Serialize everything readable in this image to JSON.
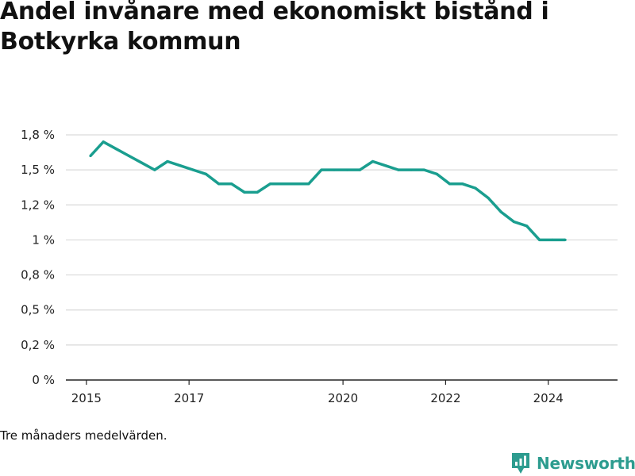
{
  "header": {
    "title": "Andel invånare med ekonomiskt bistånd i Botkyrka kommun"
  },
  "footer": {
    "note": "Tre månaders medelvärden.",
    "brand": "Newsworthy"
  },
  "colors": {
    "line": "#1a9e8f",
    "grid": "#d9d9d9",
    "axis": "#222222",
    "brand": "#2d9c8f"
  },
  "chart_data": {
    "type": "line",
    "title": "Andel invånare med ekonomiskt bistånd i Botkyrka kommun",
    "xlabel": "",
    "ylabel": "",
    "ylim": [
      0,
      1.75
    ],
    "grid": true,
    "y_ticks": [
      {
        "value": 0,
        "label": "0 %"
      },
      {
        "value": 0.25,
        "label": "0,2 %"
      },
      {
        "value": 0.5,
        "label": "0,5 %"
      },
      {
        "value": 0.75,
        "label": "0,8 %"
      },
      {
        "value": 1.0,
        "label": "1 %"
      },
      {
        "value": 1.25,
        "label": "1,2 %"
      },
      {
        "value": 1.5,
        "label": "1,5 %"
      },
      {
        "value": 1.75,
        "label": "1,8 %"
      }
    ],
    "x_ticks": [
      {
        "value": 2015,
        "label": "2015"
      },
      {
        "value": 2017,
        "label": "2017"
      },
      {
        "value": 2020,
        "label": "2020"
      },
      {
        "value": 2022,
        "label": "2022"
      },
      {
        "value": 2024,
        "label": "2024"
      }
    ],
    "xlim": [
      2014.6,
      2025.35
    ],
    "series": [
      {
        "values": [
          {
            "x": 2015.08,
            "y": 1.6
          },
          {
            "x": 2015.33,
            "y": 1.7
          },
          {
            "x": 2015.58,
            "y": 1.65
          },
          {
            "x": 2015.83,
            "y": 1.6
          },
          {
            "x": 2016.08,
            "y": 1.55
          },
          {
            "x": 2016.33,
            "y": 1.5
          },
          {
            "x": 2016.58,
            "y": 1.56
          },
          {
            "x": 2016.83,
            "y": 1.53
          },
          {
            "x": 2017.08,
            "y": 1.5
          },
          {
            "x": 2017.33,
            "y": 1.47
          },
          {
            "x": 2017.58,
            "y": 1.4
          },
          {
            "x": 2017.83,
            "y": 1.4
          },
          {
            "x": 2018.08,
            "y": 1.34
          },
          {
            "x": 2018.33,
            "y": 1.34
          },
          {
            "x": 2018.58,
            "y": 1.4
          },
          {
            "x": 2018.83,
            "y": 1.4
          },
          {
            "x": 2019.08,
            "y": 1.4
          },
          {
            "x": 2019.33,
            "y": 1.4
          },
          {
            "x": 2019.58,
            "y": 1.5
          },
          {
            "x": 2019.83,
            "y": 1.5
          },
          {
            "x": 2020.08,
            "y": 1.5
          },
          {
            "x": 2020.33,
            "y": 1.5
          },
          {
            "x": 2020.58,
            "y": 1.56
          },
          {
            "x": 2020.83,
            "y": 1.53
          },
          {
            "x": 2021.08,
            "y": 1.5
          },
          {
            "x": 2021.33,
            "y": 1.5
          },
          {
            "x": 2021.58,
            "y": 1.5
          },
          {
            "x": 2021.83,
            "y": 1.47
          },
          {
            "x": 2022.08,
            "y": 1.4
          },
          {
            "x": 2022.33,
            "y": 1.4
          },
          {
            "x": 2022.58,
            "y": 1.37
          },
          {
            "x": 2022.83,
            "y": 1.3
          },
          {
            "x": 2023.08,
            "y": 1.2
          },
          {
            "x": 2023.33,
            "y": 1.13
          },
          {
            "x": 2023.58,
            "y": 1.1
          },
          {
            "x": 2023.83,
            "y": 1.0
          },
          {
            "x": 2024.08,
            "y": 1.0
          },
          {
            "x": 2024.33,
            "y": 1.0
          }
        ]
      }
    ]
  }
}
